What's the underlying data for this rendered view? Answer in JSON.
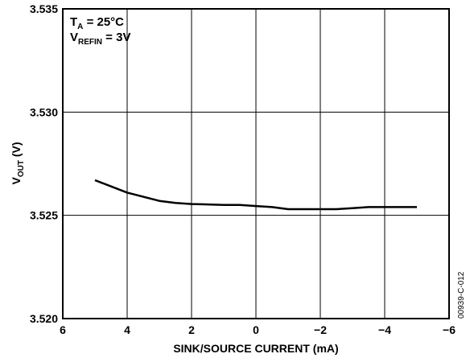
{
  "chart_data": {
    "type": "line",
    "xlabel": "SINK/SOURCE CURRENT (mA)",
    "ylabel_main": "V",
    "ylabel_sub": "OUT",
    "ylabel_unit": " (V)",
    "xlim": [
      6,
      -6
    ],
    "ylim": [
      3.52,
      3.535
    ],
    "x_ticks": [
      "6",
      "4",
      "2",
      "0",
      "−2",
      "−4",
      "−6"
    ],
    "x_tick_values": [
      6,
      4,
      2,
      0,
      -2,
      -4,
      -6
    ],
    "y_ticks": [
      "3.535",
      "3.530",
      "3.525",
      "3.520"
    ],
    "y_tick_values": [
      3.535,
      3.53,
      3.525,
      3.52
    ],
    "grid": true,
    "annotations": {
      "temp_main": "T",
      "temp_sub": "A",
      "temp_value": " = 25°C",
      "ref_main": "V",
      "ref_sub": "REFIN",
      "ref_value": " = 3V"
    },
    "figure_id": "00939-C-012",
    "series": [
      {
        "x": [
          5,
          4.5,
          4,
          3.5,
          3,
          2.5,
          2,
          1.5,
          1,
          0.5,
          0,
          -0.5,
          -1,
          -1.5,
          -2,
          -2.5,
          -3,
          -3.5,
          -4,
          -4.5,
          -5
        ],
        "y": [
          3.5267,
          3.5264,
          3.5261,
          3.5259,
          3.5257,
          3.5256,
          3.52555,
          3.52553,
          3.5255,
          3.5255,
          3.52545,
          3.5254,
          3.5253,
          3.5253,
          3.5253,
          3.5253,
          3.52535,
          3.5254,
          3.5254,
          3.5254,
          3.5254
        ]
      }
    ]
  }
}
